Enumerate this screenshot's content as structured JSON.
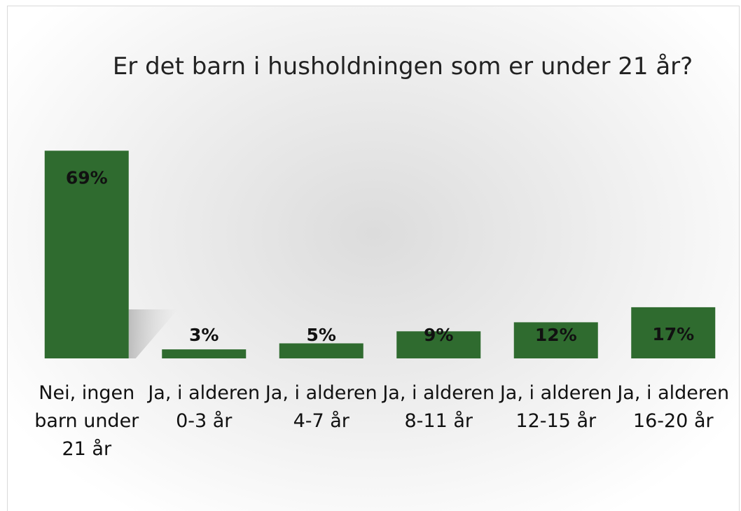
{
  "chart_data": {
    "type": "bar",
    "title": "Er det barn i husholdningen som er under 21 år?",
    "categories": [
      "Nei, ingen barn under 21 år",
      "Ja, i alderen 0-3 år",
      "Ja, i alderen 4-7 år",
      "Ja, i alderen 8-11 år",
      "Ja, i alderen 12-15 år",
      "Ja, i alderen 16-20 år"
    ],
    "values": [
      69,
      3,
      5,
      9,
      12,
      17
    ],
    "value_labels": [
      "69%",
      "3%",
      "5%",
      "9%",
      "12%",
      "17%"
    ],
    "color": "#2f6b2f"
  }
}
